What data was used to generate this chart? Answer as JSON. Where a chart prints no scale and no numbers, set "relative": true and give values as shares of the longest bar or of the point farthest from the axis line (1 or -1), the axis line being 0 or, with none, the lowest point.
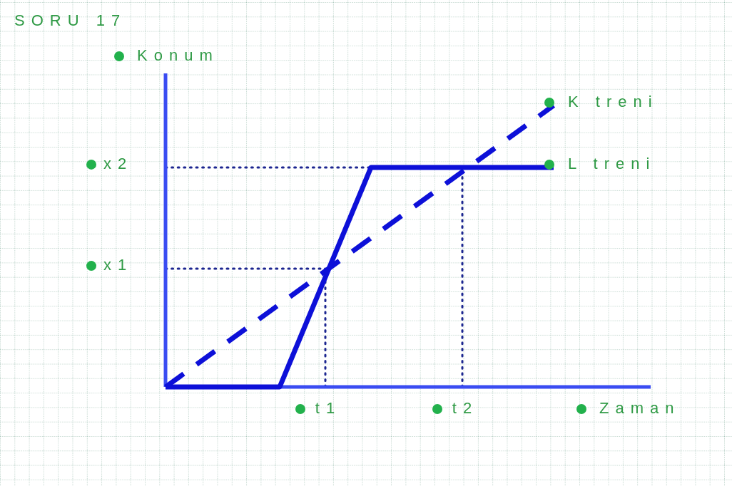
{
  "chart_data": {
    "type": "line",
    "title": "SORU 17",
    "xlabel": "Zaman",
    "ylabel": "Konum",
    "relative": true,
    "categories": [
      null,
      null,
      null,
      null,
      null,
      null,
      null,
      "t1",
      null,
      null,
      null,
      null,
      null,
      "t2",
      null,
      null,
      null,
      null,
      null,
      null,
      null,
      null
    ],
    "series": [
      {
        "name": "K treni",
        "color": "#0d10d8",
        "values": [
          0,
          null,
          null,
          null,
          null,
          null,
          null,
          null,
          null,
          null,
          null,
          null,
          null,
          null,
          null,
          null,
          null,
          1,
          null,
          null,
          null,
          null
        ],
        "line_style": "dashed"
      },
      {
        "name": "L treni",
        "color": "#0d10d8",
        "values": [
          0,
          null,
          null,
          null,
          null,
          0,
          null,
          null,
          null,
          0.78,
          null,
          null,
          null,
          null,
          null,
          null,
          null,
          0.78,
          null,
          null,
          null,
          null
        ],
        "line_style": "solid"
      }
    ],
    "ref_lines": [
      {
        "axis": "x",
        "value": "t1",
        "color": "#1c2690",
        "line_style": "dotted"
      },
      {
        "axis": "x",
        "value": "t2",
        "color": "#1c2690",
        "line_style": "dotted"
      },
      {
        "axis": "y",
        "value": 0.42,
        "label": "x1",
        "color": "#1c2690",
        "line_style": "dotted"
      },
      {
        "axis": "y",
        "value": 0.78,
        "label": "x2",
        "color": "#1c2690",
        "line_style": "dotted"
      }
    ]
  }
}
